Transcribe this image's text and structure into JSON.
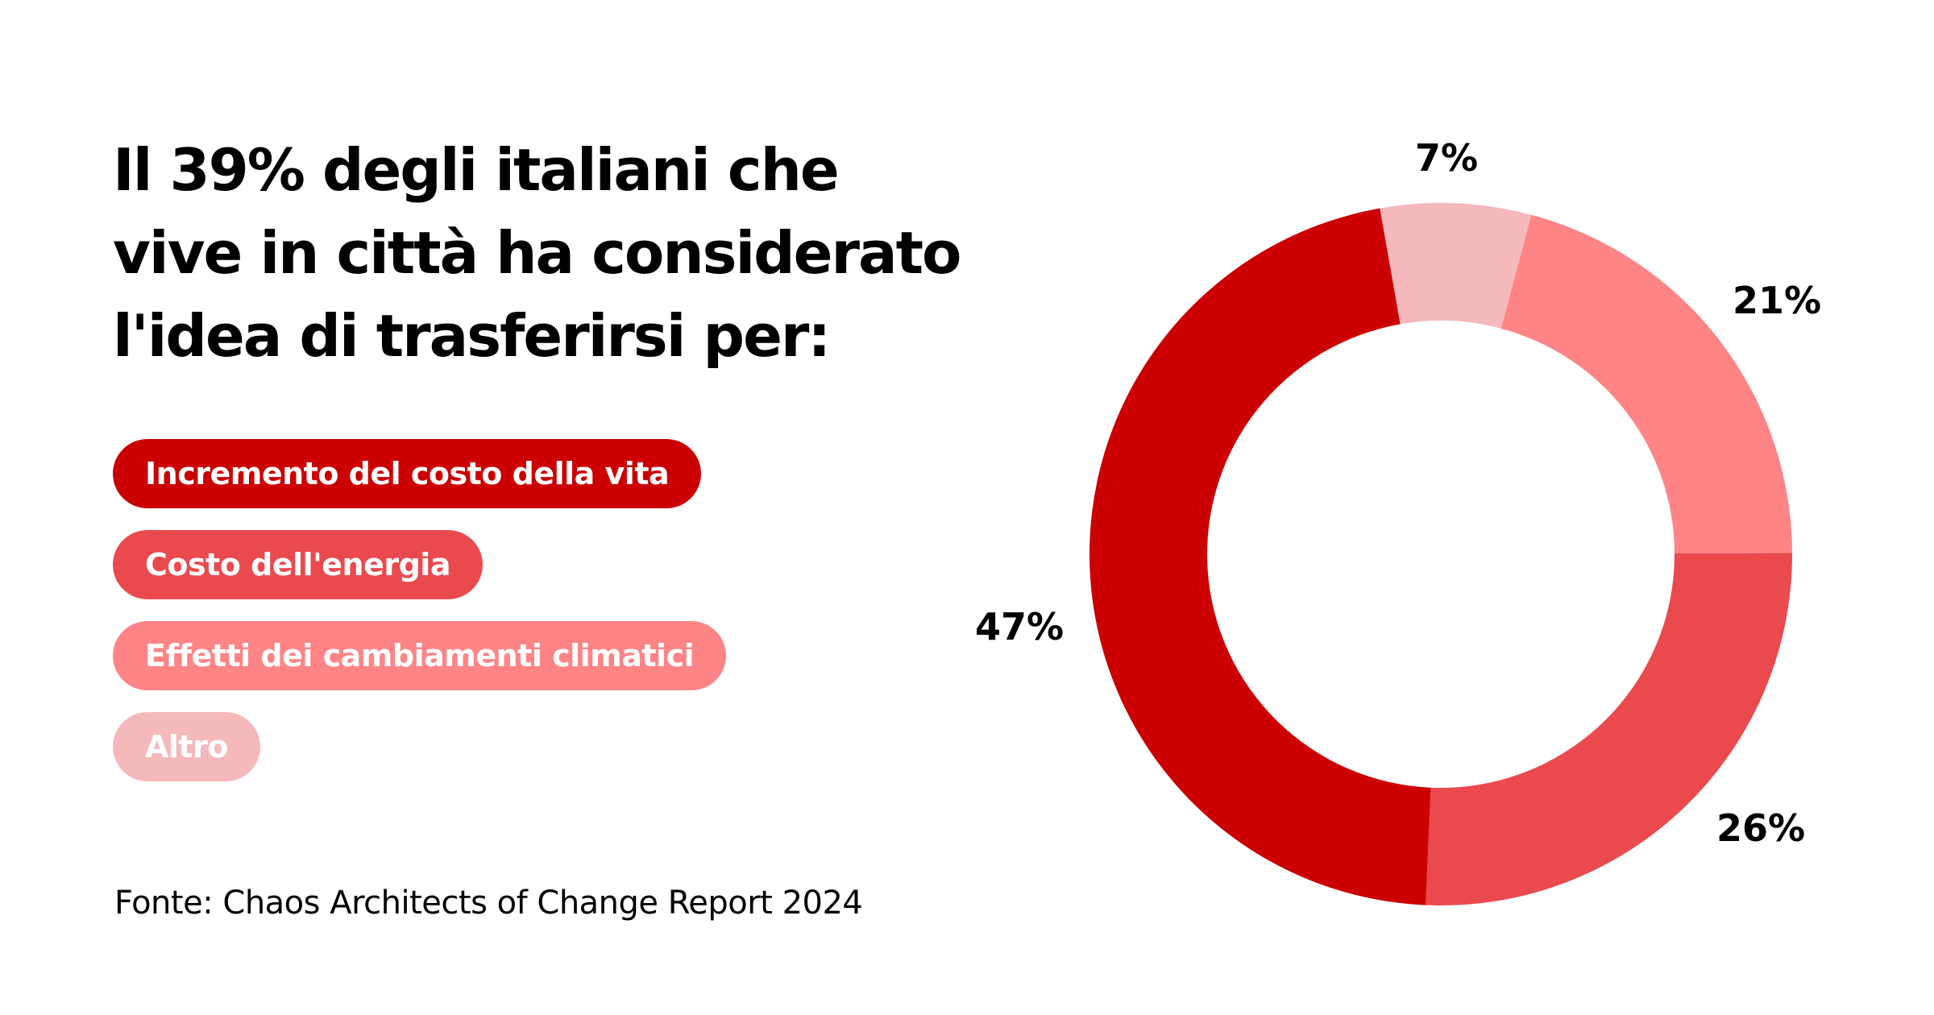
{
  "title": [
    "Il 39% degli italiani che",
    "vive in città ha considerato",
    "l'idea di trasferirsi per:"
  ],
  "source": "Fonte: Chaos Architects of Change Report 2024",
  "chart_data": {
    "type": "pie",
    "variant": "donut",
    "title": "Il 39% degli italiani che vive in città ha considerato l'idea di trasferirsi per:",
    "categories": [
      "Incremento del costo della vita",
      "Costo dell'energia",
      "Effetti dei cambiamenti climatici",
      "Altro"
    ],
    "values": [
      47,
      26,
      21,
      7
    ],
    "labels": [
      "47%",
      "26%",
      "21%",
      "7%"
    ],
    "colors": [
      "#CC0000",
      "#EA4A4E",
      "#FF8486",
      "#F5B8BB"
    ],
    "legend_position": "left",
    "unit": "%"
  }
}
